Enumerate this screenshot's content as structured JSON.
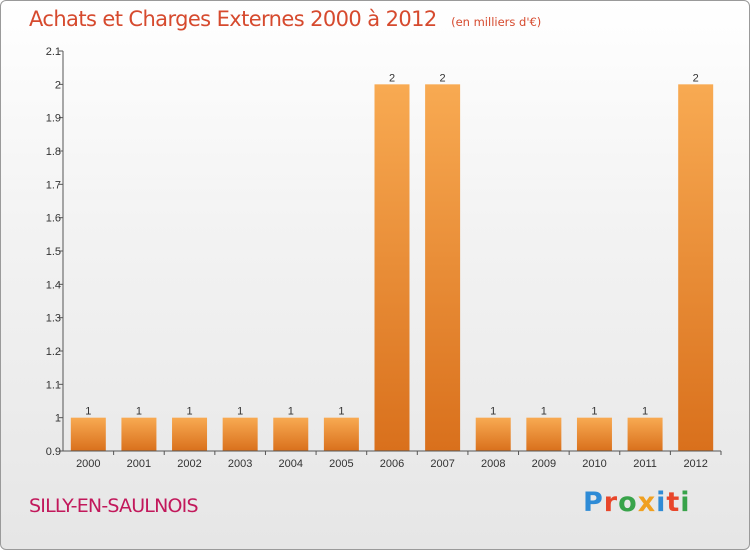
{
  "header": {
    "title": "Achats et Charges Externes 2000 à 2012",
    "subtitle": "(en milliers d'€)"
  },
  "footer": {
    "commune": "SILLY-EN-SAULNOIS",
    "brand": "Proxiti",
    "brand_colors": [
      "#2e8bd6",
      "#e8462a",
      "#38a34a",
      "#f0a020",
      "#2e8bd6",
      "#e8462a",
      "#38a34a"
    ]
  },
  "colors": {
    "bar_top": "#f8aa52",
    "bar_bottom": "#d9701c",
    "axis": "#555555",
    "text": "#333333"
  },
  "chart_data": {
    "type": "bar",
    "title": "Achats et Charges Externes 2000 à 2012",
    "subtitle": "(en milliers d'€)",
    "categories": [
      "2000",
      "2001",
      "2002",
      "2003",
      "2004",
      "2005",
      "2006",
      "2007",
      "2008",
      "2009",
      "2010",
      "2011",
      "2012"
    ],
    "values": [
      1,
      1,
      1,
      1,
      1,
      1,
      2,
      2,
      1,
      1,
      1,
      1,
      2
    ],
    "data_labels": [
      "1",
      "1",
      "1",
      "1",
      "1",
      "1",
      "2",
      "2",
      "1",
      "1",
      "1",
      "1",
      "2"
    ],
    "ylim": [
      0.9,
      2.1
    ],
    "yticks": [
      0.9,
      1,
      1.1,
      1.2,
      1.3,
      1.4,
      1.5,
      1.6,
      1.7,
      1.8,
      1.9,
      2,
      2.1
    ],
    "ytick_labels": [
      "0.9",
      "1",
      "1.1",
      "1.2",
      "1.3",
      "1.4",
      "1.5",
      "1.6",
      "1.7",
      "1.8",
      "1.9",
      "2",
      "2.1"
    ],
    "xlabel": "",
    "ylabel": "",
    "grid": false,
    "legend": "none"
  }
}
